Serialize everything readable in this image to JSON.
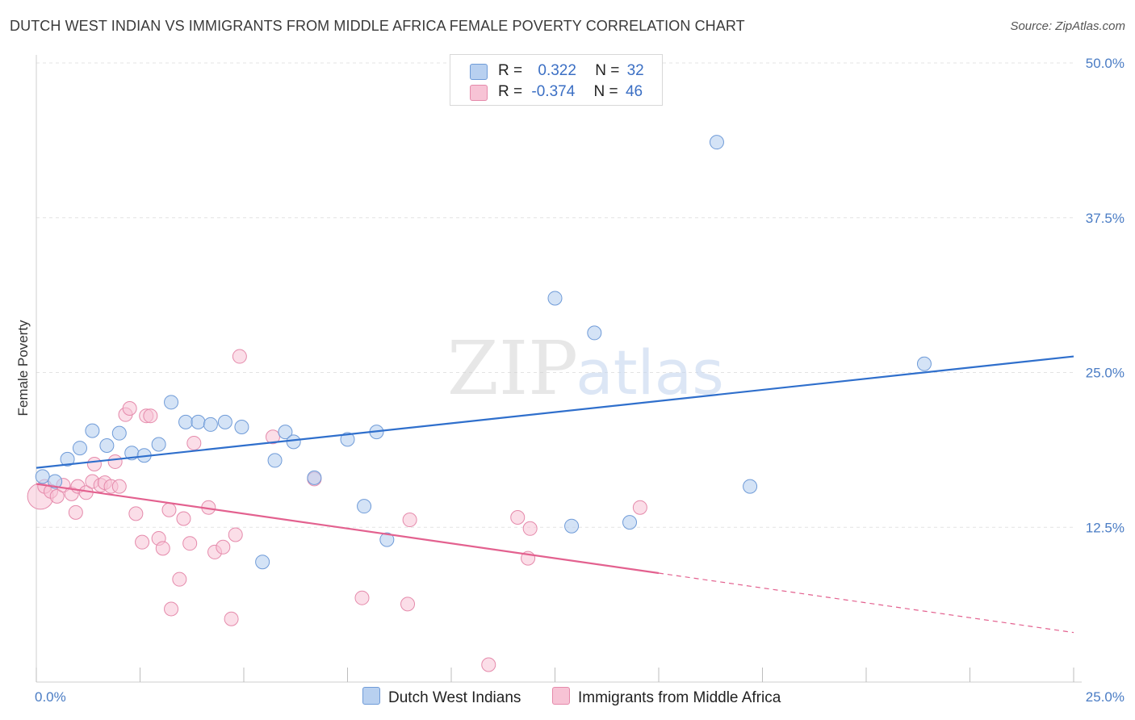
{
  "title": "DUTCH WEST INDIAN VS IMMIGRANTS FROM MIDDLE AFRICA FEMALE POVERTY CORRELATION CHART",
  "source": "Source: ZipAtlas.com",
  "watermark": {
    "zip": "ZIP",
    "atlas": "atlas"
  },
  "legend": {
    "r_label": "R =",
    "n_label": "N =",
    "series1": {
      "r": "0.322",
      "n": "32"
    },
    "series2": {
      "r": "-0.374",
      "n": "46"
    }
  },
  "colors": {
    "blue_fill": "#b8d0f0",
    "blue_stroke": "#6f9bd8",
    "blue_line": "#2f6fcc",
    "pink_fill": "#f7c3d5",
    "pink_stroke": "#e58aab",
    "pink_line": "#e3618f"
  },
  "chart_data": {
    "type": "scatter",
    "title": "DUTCH WEST INDIAN VS IMMIGRANTS FROM MIDDLE AFRICA FEMALE POVERTY CORRELATION CHART",
    "ylabel": "Female Poverty",
    "xlim": [
      0,
      25
    ],
    "ylim": [
      0,
      50
    ],
    "x_tick_labels": [
      "0.0%",
      "25.0%"
    ],
    "y_ticks": [
      12.5,
      25.0,
      37.5,
      50.0
    ],
    "y_tick_labels": [
      "12.5%",
      "25.0%",
      "37.5%",
      "50.0%"
    ],
    "grid": true,
    "legend_position": "top-center",
    "series": [
      {
        "name": "Dutch West Indians",
        "r": 0.322,
        "n": 32,
        "trend": {
          "x": [
            0,
            25
          ],
          "y": [
            17.3,
            26.3
          ]
        },
        "points": [
          {
            "x": 0.15,
            "y": 16.6
          },
          {
            "x": 0.45,
            "y": 16.2
          },
          {
            "x": 0.75,
            "y": 18.0
          },
          {
            "x": 1.05,
            "y": 18.9
          },
          {
            "x": 1.35,
            "y": 20.3
          },
          {
            "x": 1.7,
            "y": 19.1
          },
          {
            "x": 2.0,
            "y": 20.1
          },
          {
            "x": 2.3,
            "y": 18.5
          },
          {
            "x": 2.6,
            "y": 18.3
          },
          {
            "x": 2.95,
            "y": 19.2
          },
          {
            "x": 3.25,
            "y": 22.6
          },
          {
            "x": 3.6,
            "y": 21.0
          },
          {
            "x": 3.9,
            "y": 21.0
          },
          {
            "x": 4.2,
            "y": 20.8
          },
          {
            "x": 4.55,
            "y": 21.0
          },
          {
            "x": 4.95,
            "y": 20.6
          },
          {
            "x": 5.45,
            "y": 9.7
          },
          {
            "x": 5.75,
            "y": 17.9
          },
          {
            "x": 6.0,
            "y": 20.2
          },
          {
            "x": 6.2,
            "y": 19.4
          },
          {
            "x": 6.7,
            "y": 16.5
          },
          {
            "x": 7.5,
            "y": 19.6
          },
          {
            "x": 7.9,
            "y": 14.2
          },
          {
            "x": 8.2,
            "y": 20.2
          },
          {
            "x": 8.45,
            "y": 11.5
          },
          {
            "x": 12.5,
            "y": 31.0
          },
          {
            "x": 12.9,
            "y": 12.6
          },
          {
            "x": 13.45,
            "y": 28.2
          },
          {
            "x": 14.3,
            "y": 12.9
          },
          {
            "x": 16.4,
            "y": 43.6
          },
          {
            "x": 17.2,
            "y": 15.8
          },
          {
            "x": 21.4,
            "y": 25.7
          }
        ]
      },
      {
        "name": "Immigrants from Middle Africa",
        "r": -0.374,
        "n": 46,
        "trend_solid": {
          "x": [
            0,
            15
          ],
          "y": [
            16.0,
            8.8
          ]
        },
        "trend_dashed": {
          "x": [
            15,
            25
          ],
          "y": [
            8.8,
            4.0
          ]
        },
        "points": [
          {
            "x": 0.1,
            "y": 15.0
          },
          {
            "x": 0.2,
            "y": 15.8
          },
          {
            "x": 0.35,
            "y": 15.4
          },
          {
            "x": 0.5,
            "y": 15.0
          },
          {
            "x": 0.65,
            "y": 15.9
          },
          {
            "x": 0.85,
            "y": 15.2
          },
          {
            "x": 0.95,
            "y": 13.7
          },
          {
            "x": 1.0,
            "y": 15.8
          },
          {
            "x": 1.2,
            "y": 15.3
          },
          {
            "x": 1.35,
            "y": 16.2
          },
          {
            "x": 1.4,
            "y": 17.6
          },
          {
            "x": 1.55,
            "y": 15.9
          },
          {
            "x": 1.65,
            "y": 16.1
          },
          {
            "x": 1.8,
            "y": 15.8
          },
          {
            "x": 1.9,
            "y": 17.8
          },
          {
            "x": 2.0,
            "y": 15.8
          },
          {
            "x": 2.15,
            "y": 21.6
          },
          {
            "x": 2.25,
            "y": 22.1
          },
          {
            "x": 2.4,
            "y": 13.6
          },
          {
            "x": 2.55,
            "y": 11.3
          },
          {
            "x": 2.65,
            "y": 21.5
          },
          {
            "x": 2.75,
            "y": 21.5
          },
          {
            "x": 2.95,
            "y": 11.6
          },
          {
            "x": 3.05,
            "y": 10.8
          },
          {
            "x": 3.2,
            "y": 13.9
          },
          {
            "x": 3.25,
            "y": 5.9
          },
          {
            "x": 3.45,
            "y": 8.3
          },
          {
            "x": 3.55,
            "y": 13.2
          },
          {
            "x": 3.7,
            "y": 11.2
          },
          {
            "x": 3.8,
            "y": 19.3
          },
          {
            "x": 4.15,
            "y": 14.1
          },
          {
            "x": 4.3,
            "y": 10.5
          },
          {
            "x": 4.5,
            "y": 10.9
          },
          {
            "x": 4.7,
            "y": 5.1
          },
          {
            "x": 4.8,
            "y": 11.9
          },
          {
            "x": 4.9,
            "y": 26.3
          },
          {
            "x": 5.7,
            "y": 19.8
          },
          {
            "x": 6.7,
            "y": 16.4
          },
          {
            "x": 7.85,
            "y": 6.8
          },
          {
            "x": 8.95,
            "y": 6.3
          },
          {
            "x": 9.0,
            "y": 13.1
          },
          {
            "x": 10.9,
            "y": 1.4
          },
          {
            "x": 11.6,
            "y": 13.3
          },
          {
            "x": 11.85,
            "y": 10.0
          },
          {
            "x": 11.9,
            "y": 12.4
          },
          {
            "x": 14.55,
            "y": 14.1
          }
        ]
      }
    ]
  }
}
